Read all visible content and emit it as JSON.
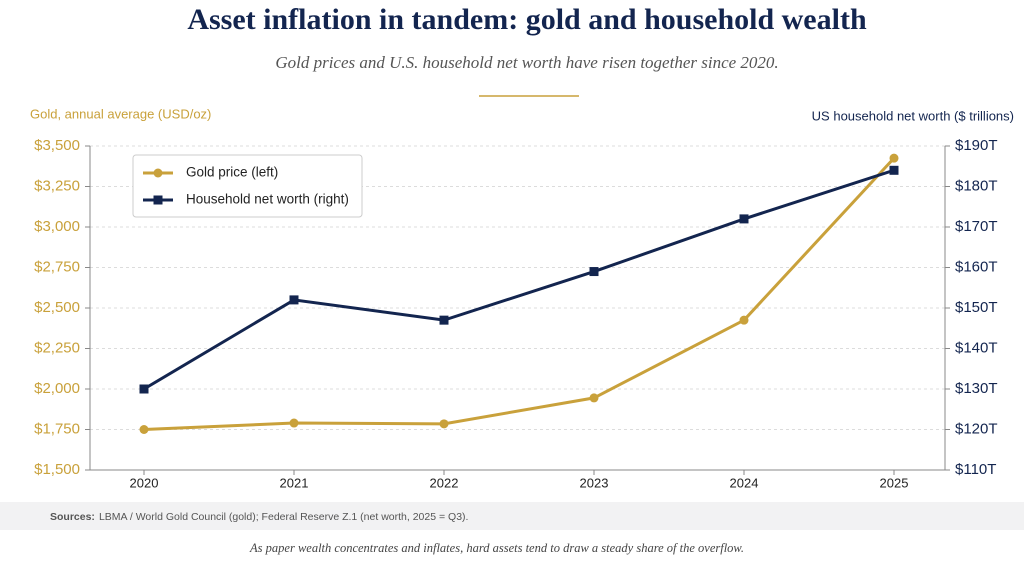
{
  "chart_data": {
    "type": "line",
    "title": "Asset inflation in tandem: gold and household wealth",
    "subtitle": "Gold prices and U.S. household net worth have risen together since 2020.",
    "y_label": "Gold, annual average (USD/oz)",
    "y2_label": "US household net worth ($ trillions)",
    "categories": [
      "2020",
      "2021",
      "2022",
      "2023",
      "2024",
      "2025"
    ],
    "series": [
      {
        "name": "Gold price (left)",
        "color": "#c9a13b",
        "marker": "circle",
        "values": [
          1750,
          1790,
          1785,
          1945,
          2425,
          3425
        ]
      },
      {
        "name": "Household net worth (right)",
        "color": "#13254f",
        "marker": "square",
        "axis": "y2",
        "values": [
          130,
          152,
          147,
          159,
          172,
          184
        ]
      }
    ],
    "ylim": [
      1500,
      3500
    ],
    "yticks": [
      {
        "value": 1500,
        "label": "$1,500"
      },
      {
        "value": 1750,
        "label": "$1,750"
      },
      {
        "value": 2000,
        "label": "$2,000"
      },
      {
        "value": 2250,
        "label": "$2,250"
      },
      {
        "value": 2500,
        "label": "$2,500"
      },
      {
        "value": 2750,
        "label": "$2,750"
      },
      {
        "value": 3000,
        "label": "$3,000"
      },
      {
        "value": 3250,
        "label": "$3,250"
      },
      {
        "value": 3500,
        "label": "$3,500"
      }
    ],
    "y2lim": [
      110,
      190
    ],
    "y2ticks": [
      {
        "value": 110,
        "label": "$110T"
      },
      {
        "value": 120,
        "label": "$120T"
      },
      {
        "value": 130,
        "label": "$130T"
      },
      {
        "value": 140,
        "label": "$140T"
      },
      {
        "value": 150,
        "label": "$150T"
      },
      {
        "value": 160,
        "label": "$160T"
      },
      {
        "value": 170,
        "label": "$170T"
      },
      {
        "value": 180,
        "label": "$180T"
      },
      {
        "value": 190,
        "label": "$190T"
      }
    ],
    "grid": true,
    "legend": "upper left",
    "source_label": "Sources:",
    "source": "LBMA / World Gold Council (gold); Federal Reserve Z.1 (net worth, 2025 = Q3).",
    "footnote": "As paper wealth concentrates and inflates, hard assets tend to draw a steady share of the overflow."
  }
}
